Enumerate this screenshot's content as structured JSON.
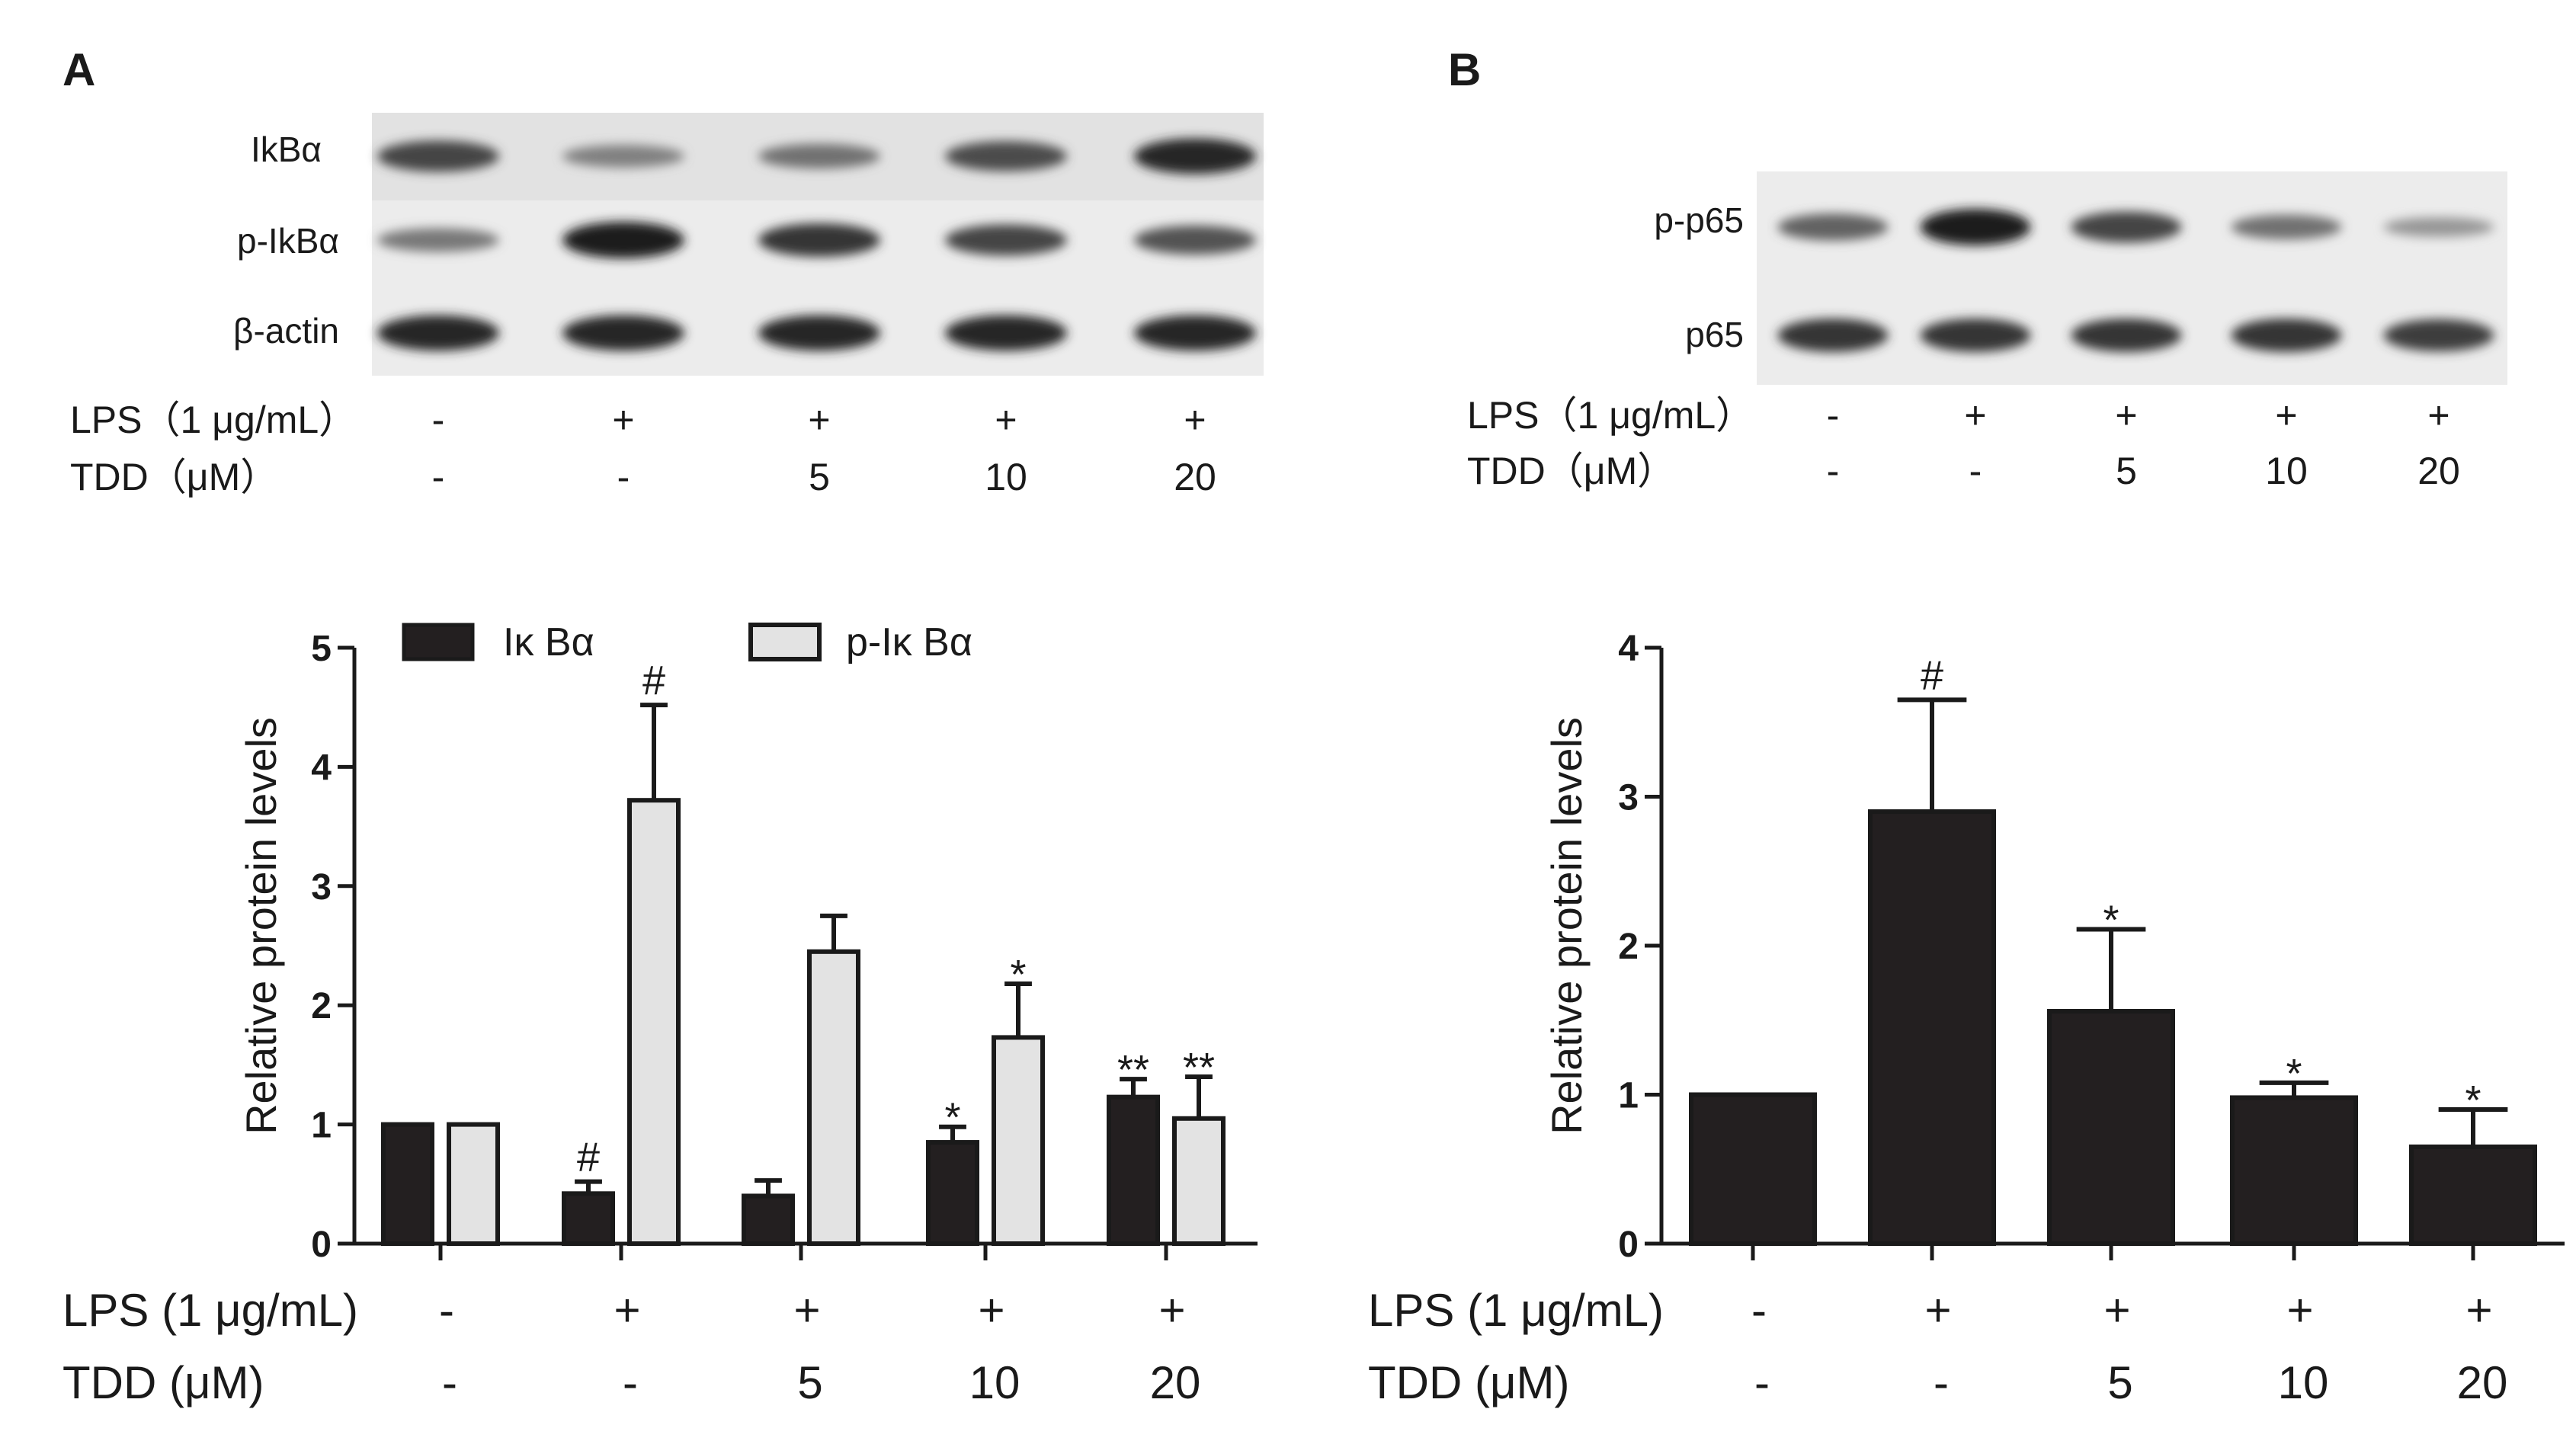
{
  "panels": [
    {
      "letter": "A",
      "blot": {
        "rows": [
          {
            "label": "IkBα",
            "intensities": [
              0.75,
              0.35,
              0.45,
              0.7,
              0.95
            ]
          },
          {
            "label": "p-IkBα",
            "intensities": [
              0.4,
              1.0,
              0.85,
              0.75,
              0.65
            ]
          },
          {
            "label": "β-actin",
            "intensities": [
              0.95,
              0.95,
              0.95,
              0.95,
              0.95
            ]
          }
        ],
        "lps_label": "LPS（1 μg/mL）",
        "lps_values": [
          "-",
          "+",
          "+",
          "+",
          "+"
        ],
        "tdd_label": "TDD（μM）",
        "tdd_values": [
          "-",
          "-",
          "5",
          "10",
          "20"
        ]
      },
      "chart": {
        "type": "bar",
        "ylabel": "Relative protein levels",
        "ylim": [
          0,
          5
        ],
        "yticks": [
          "0",
          "1",
          "2",
          "3",
          "4",
          "5"
        ],
        "series": [
          {
            "name": "Iκ Bα",
            "color": "#231f20",
            "values": [
              1.0,
              0.42,
              0.4,
              0.85,
              1.23
            ],
            "errors": [
              0,
              0.1,
              0.13,
              0.13,
              0.15
            ],
            "markers": [
              "",
              "#",
              "",
              "*",
              "**"
            ]
          },
          {
            "name": "p-Iκ Bα",
            "color": "#e3e3e3",
            "values": [
              1.0,
              3.72,
              2.45,
              1.73,
              1.05
            ],
            "errors": [
              0,
              0.8,
              0.3,
              0.45,
              0.35
            ],
            "markers": [
              "",
              "#",
              "",
              "*",
              "**"
            ]
          }
        ],
        "lps_label": "LPS (1 μg/mL)",
        "lps_values": [
          "-",
          "+",
          "+",
          "+",
          "+"
        ],
        "tdd_label": "TDD (μM)",
        "tdd_values": [
          "-",
          "-",
          "5",
          "10",
          "20"
        ]
      }
    },
    {
      "letter": "B",
      "blot": {
        "rows": [
          {
            "label": "p-p65",
            "intensities": [
              0.55,
              1.0,
              0.75,
              0.45,
              0.2
            ]
          },
          {
            "label": "p65",
            "intensities": [
              0.85,
              0.85,
              0.85,
              0.85,
              0.8
            ]
          }
        ],
        "lps_label": "LPS（1 μg/mL）",
        "lps_values": [
          "-",
          "+",
          "+",
          "+",
          "+"
        ],
        "tdd_label": "TDD（μM）",
        "tdd_values": [
          "-",
          "-",
          "5",
          "10",
          "20"
        ]
      },
      "chart": {
        "type": "bar",
        "ylabel": "Relative protein levels",
        "ylim": [
          0,
          4
        ],
        "yticks": [
          "0",
          "1",
          "2",
          "3",
          "4"
        ],
        "series": [
          {
            "name": "",
            "color": "#231f20",
            "values": [
              1.0,
              2.9,
              1.56,
              0.98,
              0.65
            ],
            "errors": [
              0,
              0.75,
              0.55,
              0.1,
              0.25
            ],
            "markers": [
              "",
              "#",
              "*",
              "*",
              "*"
            ]
          }
        ],
        "lps_label": "LPS (1 μg/mL)",
        "lps_values": [
          "-",
          "+",
          "+",
          "+",
          "+"
        ],
        "tdd_label": "TDD (μM)",
        "tdd_values": [
          "-",
          "-",
          "5",
          "10",
          "20"
        ]
      }
    }
  ],
  "chart_data": [
    {
      "type": "bar",
      "categories": [
        "-/-",
        "+/-",
        "+/5",
        "+/10",
        "+/20"
      ],
      "series": [
        {
          "name": "Iκ Bα",
          "values": [
            1.0,
            0.42,
            0.4,
            0.85,
            1.23
          ]
        },
        {
          "name": "p-Iκ Bα",
          "values": [
            1.0,
            3.72,
            2.45,
            1.73,
            1.05
          ]
        }
      ],
      "ylabel": "Relative protein levels",
      "ylim": [
        0,
        5
      ]
    },
    {
      "type": "bar",
      "categories": [
        "-/-",
        "+/-",
        "+/5",
        "+/10",
        "+/20"
      ],
      "series": [
        {
          "name": "",
          "values": [
            1.0,
            2.9,
            1.56,
            0.98,
            0.65
          ]
        }
      ],
      "ylabel": "Relative protein levels",
      "ylim": [
        0,
        4
      ]
    }
  ]
}
